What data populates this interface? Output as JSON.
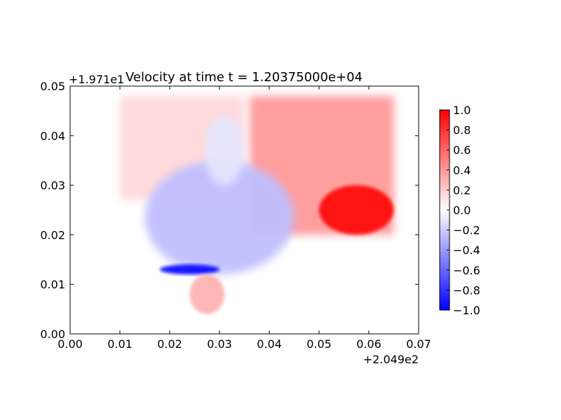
{
  "chart_data": {
    "type": "heatmap",
    "title": "Velocity at time t = 1.20375000e+04",
    "x_offset_label": "+2.049e2",
    "y_offset_label": "+1.971e1",
    "xlim": [
      0.0,
      0.07
    ],
    "ylim": [
      0.0,
      0.05
    ],
    "x_ticks": [
      "0.00",
      "0.01",
      "0.02",
      "0.03",
      "0.04",
      "0.05",
      "0.06",
      "0.07"
    ],
    "y_ticks": [
      "0.00",
      "0.01",
      "0.02",
      "0.03",
      "0.04",
      "0.05"
    ],
    "colorbar": {
      "colormap": "bwr",
      "range": [
        -1.0,
        1.0
      ],
      "ticks": [
        "−1.0",
        "−0.8",
        "−0.6",
        "−0.4",
        "−0.2",
        "0.0",
        "0.2",
        "0.4",
        "0.6",
        "0.8",
        "1.0"
      ]
    },
    "field_regions": [
      {
        "name": "upper-right-positive-plume",
        "x": [
          0.036,
          0.065
        ],
        "y": [
          0.02,
          0.048
        ],
        "value": 0.4
      },
      {
        "name": "left-upper-positive-region",
        "x": [
          0.01,
          0.035
        ],
        "y": [
          0.027,
          0.048
        ],
        "value": 0.15
      },
      {
        "name": "right-edge-strong-positive",
        "x": [
          0.05,
          0.065
        ],
        "y": [
          0.02,
          0.03
        ],
        "value": 0.95
      },
      {
        "name": "central-negative-lobe",
        "x": [
          0.015,
          0.045
        ],
        "y": [
          0.012,
          0.035
        ],
        "value": -0.25
      },
      {
        "name": "top-negative-plume",
        "x": [
          0.027,
          0.035
        ],
        "y": [
          0.03,
          0.044
        ],
        "value": -0.1
      },
      {
        "name": "bottom-strong-negative-band",
        "x": [
          0.018,
          0.03
        ],
        "y": [
          0.012,
          0.014
        ],
        "value": -0.95
      },
      {
        "name": "lower-positive-tail",
        "x": [
          0.024,
          0.031
        ],
        "y": [
          0.004,
          0.012
        ],
        "value": 0.3
      }
    ]
  }
}
